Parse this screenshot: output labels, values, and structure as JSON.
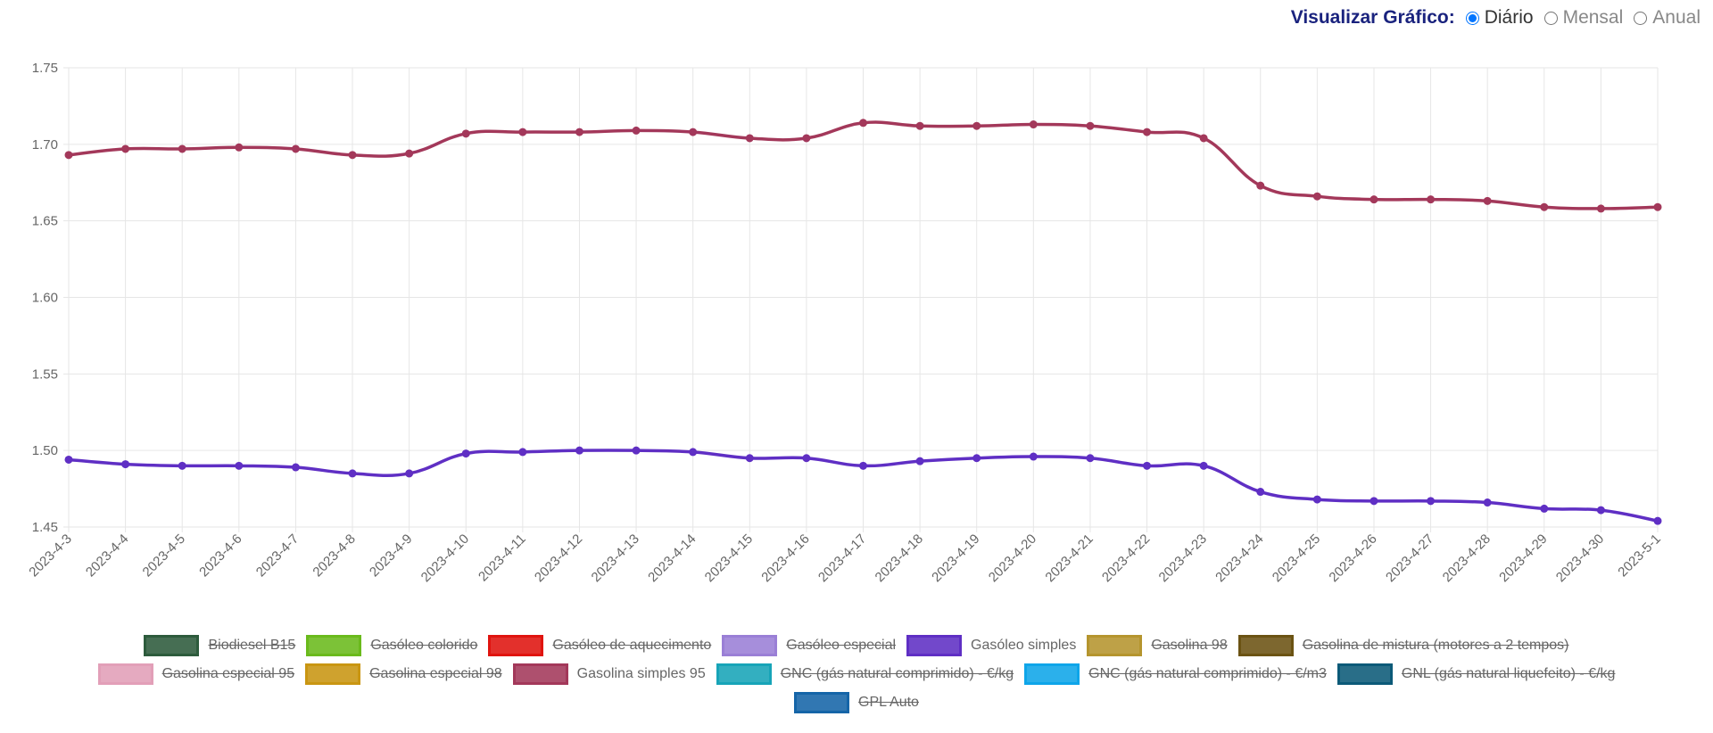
{
  "view_selector": {
    "label": "Visualizar Gráfico:",
    "options": [
      {
        "label": "Diário",
        "checked": true
      },
      {
        "label": "Mensal",
        "checked": false
      },
      {
        "label": "Anual",
        "checked": false
      }
    ]
  },
  "chart_data": {
    "type": "line",
    "grid": true,
    "categories": [
      "2023-4-3",
      "2023-4-4",
      "2023-4-5",
      "2023-4-6",
      "2023-4-7",
      "2023-4-8",
      "2023-4-9",
      "2023-4-10",
      "2023-4-11",
      "2023-4-12",
      "2023-4-13",
      "2023-4-14",
      "2023-4-15",
      "2023-4-16",
      "2023-4-17",
      "2023-4-18",
      "2023-4-19",
      "2023-4-20",
      "2023-4-21",
      "2023-4-22",
      "2023-4-23",
      "2023-4-24",
      "2023-4-25",
      "2023-4-26",
      "2023-4-27",
      "2023-4-28",
      "2023-4-29",
      "2023-4-30",
      "2023-5-1"
    ],
    "ylim": [
      1.45,
      1.75
    ],
    "yticks": [
      1.45,
      {
        "value": 1.5,
        "label": "1.50"
      },
      1.55,
      {
        "value": 1.6,
        "label": "1.60"
      },
      1.65,
      {
        "value": 1.7,
        "label": "1.70"
      },
      1.75
    ],
    "series": [
      {
        "name": "Biodiesel B15",
        "color": "#2d5b3c",
        "hidden": true
      },
      {
        "name": "Gasóleo colorido",
        "color": "#6aba1c",
        "hidden": true
      },
      {
        "name": "Gasóleo de aquecimento",
        "color": "#e0140f",
        "hidden": true
      },
      {
        "name": "Gasóleo especial",
        "color": "#9a7fd6",
        "hidden": true
      },
      {
        "name": "Gasóleo simples",
        "color": "#5f2fc4",
        "hidden": false,
        "values": [
          1.494,
          1.491,
          1.49,
          1.49,
          1.489,
          1.485,
          1.485,
          1.498,
          1.499,
          1.5,
          1.5,
          1.499,
          1.495,
          1.495,
          1.49,
          1.493,
          1.495,
          1.496,
          1.495,
          1.49,
          1.49,
          1.473,
          1.468,
          1.467,
          1.467,
          1.466,
          1.462,
          1.461,
          1.454
        ]
      },
      {
        "name": "Gasolina 98",
        "color": "#b5952e",
        "hidden": true
      },
      {
        "name": "Gasolina de mistura (motores a 2 tempos)",
        "color": "#6b5313",
        "hidden": true
      },
      {
        "name": "Gasolina especial 95",
        "color": "#e29fb8",
        "hidden": true
      },
      {
        "name": "Gasolina especial 98",
        "color": "#c99612",
        "hidden": true
      },
      {
        "name": "Gasolina simples 95",
        "color": "#a3385a",
        "hidden": false,
        "values": [
          1.693,
          1.697,
          1.697,
          1.698,
          1.697,
          1.693,
          1.694,
          1.707,
          1.708,
          1.708,
          1.709,
          1.708,
          1.704,
          1.704,
          1.714,
          1.712,
          1.712,
          1.713,
          1.712,
          1.708,
          1.704,
          1.673,
          1.666,
          1.664,
          1.664,
          1.663,
          1.659,
          1.658,
          1.659
        ]
      },
      {
        "name": "GNC (gás natural comprimido) - €/kg",
        "color": "#17a4b8",
        "hidden": true
      },
      {
        "name": "GNC (gás natural comprimido) - €/m3",
        "color": "#0ea5e9",
        "hidden": true
      },
      {
        "name": "GNL (gás natural liquefeito) - €/kg",
        "color": "#0c5a78",
        "hidden": true
      },
      {
        "name": "GPL Auto",
        "color": "#1565a8",
        "hidden": true
      }
    ]
  }
}
